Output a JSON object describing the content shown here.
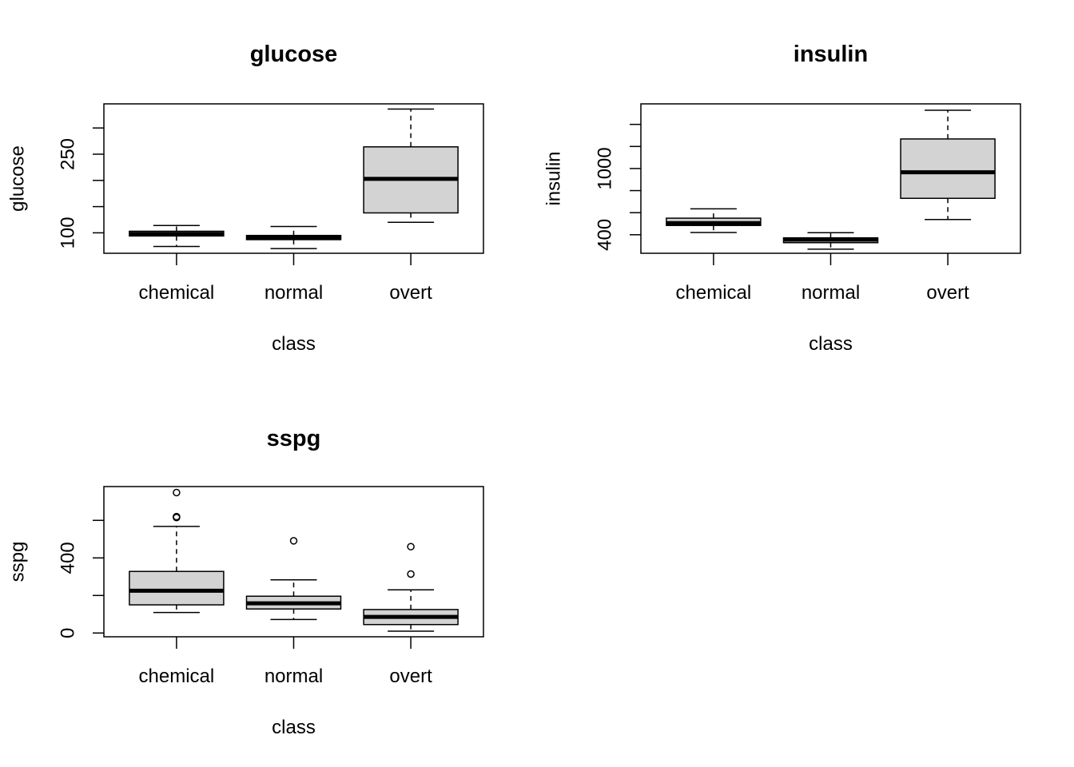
{
  "chart_data": [
    {
      "type": "boxplot",
      "title": "glucose",
      "xlabel": "class",
      "ylabel": "glucose",
      "categories": [
        "chemical",
        "normal",
        "overt"
      ],
      "yticks": [
        100,
        150,
        200,
        250,
        300
      ],
      "yticklabels": [
        "100",
        "",
        "",
        "250",
        ""
      ],
      "ylim": [
        61,
        346
      ],
      "boxes": [
        {
          "whisker_low": 74,
          "q1": 94,
          "median": 98,
          "q3": 103,
          "whisker_high": 114,
          "outliers": []
        },
        {
          "whisker_low": 70,
          "q1": 87,
          "median": 91,
          "q3": 95,
          "whisker_high": 112,
          "outliers": []
        },
        {
          "whisker_low": 120,
          "q1": 138,
          "median": 203,
          "q3": 264,
          "whisker_high": 336,
          "outliers": []
        }
      ]
    },
    {
      "type": "boxplot",
      "title": "insulin",
      "xlabel": "class",
      "ylabel": "insulin",
      "categories": [
        "chemical",
        "normal",
        "overt"
      ],
      "yticks": [
        400,
        600,
        800,
        1000,
        1200,
        1400
      ],
      "yticklabels": [
        "400",
        "",
        "",
        "1000",
        "",
        ""
      ],
      "ylim": [
        232,
        1586
      ],
      "boxes": [
        {
          "whisker_low": 420,
          "q1": 484,
          "median": 505,
          "q3": 550,
          "whisker_high": 635,
          "outliers": []
        },
        {
          "whisker_low": 269,
          "q1": 328,
          "median": 355,
          "q3": 372,
          "whisker_high": 418,
          "outliers": []
        },
        {
          "whisker_low": 538,
          "q1": 730,
          "median": 966,
          "q3": 1268,
          "whisker_high": 1528,
          "outliers": []
        }
      ]
    },
    {
      "type": "boxplot",
      "title": "sspg",
      "xlabel": "class",
      "ylabel": "sspg",
      "categories": [
        "chemical",
        "normal",
        "overt"
      ],
      "yticks": [
        0,
        200,
        400,
        600
      ],
      "yticklabels": [
        "0",
        "",
        "400",
        ""
      ],
      "ylim": [
        -20,
        780
      ],
      "boxes": [
        {
          "whisker_low": 109,
          "q1": 150,
          "median": 225,
          "q3": 328,
          "whisker_high": 568,
          "outliers": [
            748,
            615,
            620
          ]
        },
        {
          "whisker_low": 72,
          "q1": 128,
          "median": 158,
          "q3": 196,
          "whisker_high": 283,
          "outliers": [
            491
          ]
        },
        {
          "whisker_low": 10,
          "q1": 45,
          "median": 86,
          "q3": 125,
          "whisker_high": 230,
          "outliers": [
            460,
            314
          ]
        }
      ]
    }
  ]
}
